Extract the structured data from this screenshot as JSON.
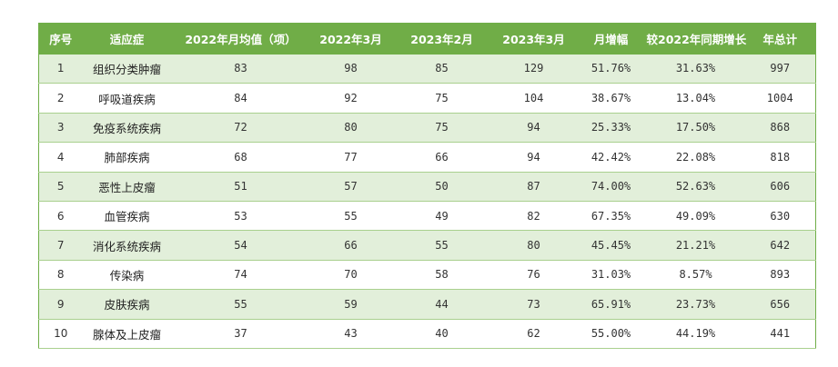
{
  "table": {
    "headers": [
      "序号",
      "适应症",
      "2022年月均值（项）",
      "2022年3月",
      "2023年2月",
      "2023年3月",
      "月增幅",
      "较2022年同期增长",
      "年总计"
    ],
    "rows": [
      [
        "1",
        "组织分类肿瘤",
        "83",
        "98",
        "85",
        "129",
        "51.76%",
        "31.63%",
        "997"
      ],
      [
        "2",
        "呼吸道疾病",
        "84",
        "92",
        "75",
        "104",
        "38.67%",
        "13.04%",
        "1004"
      ],
      [
        "3",
        "免疫系统疾病",
        "72",
        "80",
        "75",
        "94",
        "25.33%",
        "17.50%",
        "868"
      ],
      [
        "4",
        "肺部疾病",
        "68",
        "77",
        "66",
        "94",
        "42.42%",
        "22.08%",
        "818"
      ],
      [
        "5",
        "恶性上皮瘤",
        "51",
        "57",
        "50",
        "87",
        "74.00%",
        "52.63%",
        "606"
      ],
      [
        "6",
        "血管疾病",
        "53",
        "55",
        "49",
        "82",
        "67.35%",
        "49.09%",
        "630"
      ],
      [
        "7",
        "消化系统疾病",
        "54",
        "66",
        "55",
        "80",
        "45.45%",
        "21.21%",
        "642"
      ],
      [
        "8",
        "传染病",
        "74",
        "70",
        "58",
        "76",
        "31.03%",
        "8.57%",
        "893"
      ],
      [
        "9",
        "皮肤疾病",
        "55",
        "59",
        "44",
        "73",
        "65.91%",
        "23.73%",
        "656"
      ],
      [
        "10",
        "腺体及上皮瘤",
        "37",
        "43",
        "40",
        "62",
        "55.00%",
        "44.19%",
        "441"
      ]
    ]
  },
  "colors": {
    "header_bg": "#70ad47",
    "header_text": "#ffffff",
    "row_band": "#e2efda",
    "row_plain": "#ffffff"
  }
}
